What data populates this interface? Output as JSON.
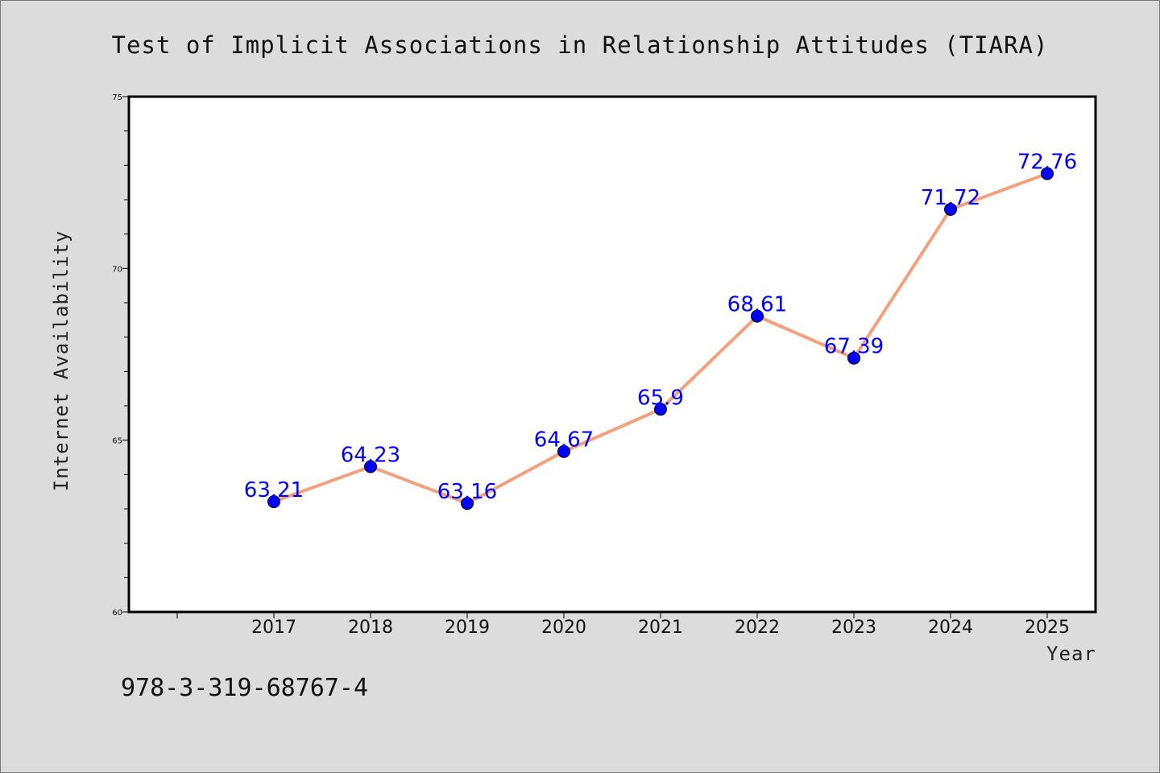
{
  "chart_data": {
    "type": "line",
    "title": "Test of Implicit Associations in Relationship Attitudes (TIARA)",
    "xlabel": "Year",
    "ylabel": "Internet Availability",
    "categories": [
      "2017",
      "2018",
      "2019",
      "2020",
      "2021",
      "2022",
      "2023",
      "2024",
      "2025"
    ],
    "series": [
      {
        "values": [
          63.21,
          64.23,
          63.16,
          64.67,
          65.9,
          68.61,
          67.39,
          71.72,
          72.76
        ],
        "labels": [
          "63.21",
          "64.23",
          "63.16",
          "64.67",
          "65.9",
          "68.61",
          "67.39",
          "71.72",
          "72.76"
        ],
        "line_color": "#f4a07c",
        "marker_color": "#0000ff"
      }
    ],
    "ylim": [
      60,
      75
    ],
    "yticks": [
      "60",
      "65",
      "70",
      "75"
    ],
    "grid": false,
    "legend": "none"
  },
  "footnote": "978-3-319-68767-4",
  "colors": {
    "background": "#dcdcdc",
    "plot_background": "#ffffff",
    "line": "#f4a07c",
    "marker": "#0000ff",
    "data_label": "#0000ff"
  }
}
